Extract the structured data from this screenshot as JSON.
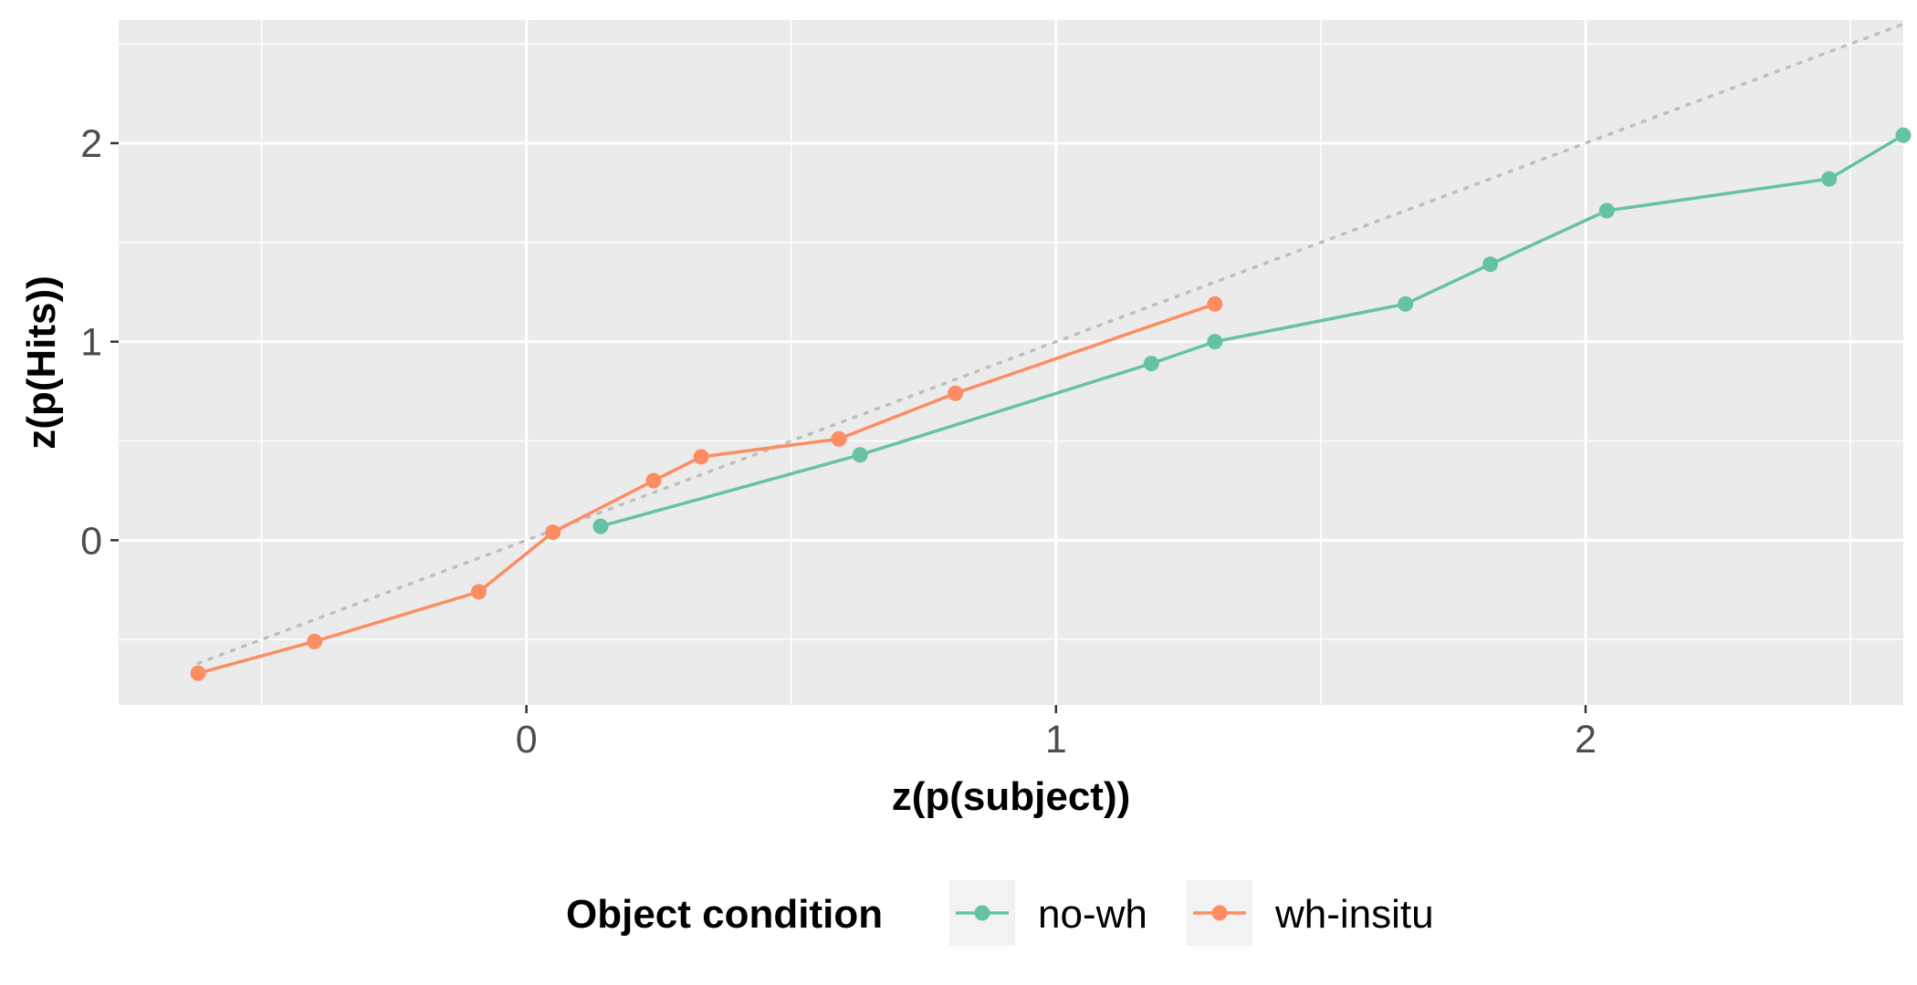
{
  "chart_data": {
    "type": "line",
    "title": "",
    "xlabel": "z(p(subject))",
    "ylabel": "z(p(Hits))",
    "xlim": [
      -0.77,
      2.6
    ],
    "ylim": [
      -0.83,
      2.62
    ],
    "x_ticks": [
      0,
      1,
      2
    ],
    "y_ticks": [
      0,
      1,
      2
    ],
    "x_tick_labels": [
      "0",
      "1",
      "2"
    ],
    "y_tick_labels": [
      "0",
      "1",
      "2"
    ],
    "x_minor": [
      -0.5,
      0.5,
      1.5,
      2.5
    ],
    "y_minor": [
      -0.5,
      0.5,
      1.5,
      2.5
    ],
    "grid": true,
    "panel_background": "#ebebeb",
    "reference_line": {
      "style": "dotted",
      "color": "#bebebe",
      "x": [
        -0.62,
        2.6
      ],
      "y": [
        -0.62,
        2.6
      ]
    },
    "legend": {
      "title": "Object condition",
      "position": "bottom"
    },
    "series": [
      {
        "name": "no-wh",
        "color": "#66c2a5",
        "x": [
          0.14,
          0.63,
          1.18,
          1.3,
          1.66,
          1.82,
          2.04,
          2.46,
          2.6
        ],
        "y": [
          0.07,
          0.43,
          0.89,
          1.0,
          1.19,
          1.39,
          1.66,
          1.82,
          2.04
        ]
      },
      {
        "name": "wh-insitu",
        "color": "#fc8d62",
        "x": [
          -0.62,
          -0.4,
          -0.09,
          0.05,
          0.24,
          0.33,
          0.59,
          0.81,
          1.3
        ],
        "y": [
          -0.67,
          -0.51,
          -0.26,
          0.04,
          0.3,
          0.42,
          0.51,
          0.74,
          1.19
        ]
      }
    ]
  }
}
